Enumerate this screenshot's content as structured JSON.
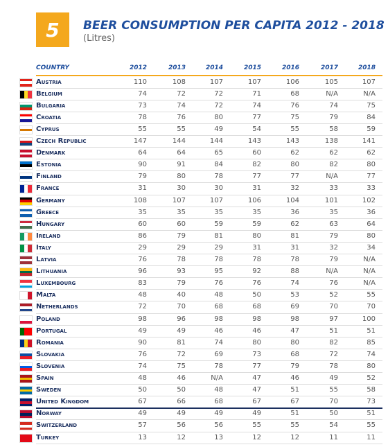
{
  "header": {
    "badge": "5",
    "title": "BEER CONSUMPTION PER CAPITA 2012 - 2018",
    "subtitle": "(Litres)"
  },
  "table": {
    "columns": [
      "COUNTRY",
      "2012",
      "2013",
      "2014",
      "2015",
      "2016",
      "2017",
      "2018"
    ],
    "rows": [
      [
        "Austria",
        110,
        108,
        107,
        107,
        106,
        105,
        107
      ],
      [
        "Belgium",
        74,
        72,
        72,
        71,
        68,
        "N/A",
        "N/A"
      ],
      [
        "Bulgaria",
        73,
        74,
        72,
        74,
        76,
        74,
        75
      ],
      [
        "Croatia",
        78,
        76,
        80,
        77,
        75,
        79,
        84
      ],
      [
        "Cyprus",
        55,
        55,
        49,
        54,
        55,
        58,
        59
      ],
      [
        "Czech Republic",
        147,
        144,
        144,
        143,
        143,
        138,
        141
      ],
      [
        "Denmark",
        64,
        64,
        65,
        60,
        62,
        62,
        62
      ],
      [
        "Estonia",
        90,
        91,
        84,
        82,
        80,
        82,
        80
      ],
      [
        "Finland",
        79,
        80,
        78,
        77,
        77,
        "N/A",
        77
      ],
      [
        "France",
        31,
        30,
        30,
        31,
        32,
        33,
        33
      ],
      [
        "Germany",
        108,
        107,
        107,
        106,
        104,
        101,
        102
      ],
      [
        "Greece",
        35,
        35,
        35,
        35,
        36,
        35,
        36
      ],
      [
        "Hungary",
        60,
        60,
        59,
        59,
        62,
        63,
        64
      ],
      [
        "Ireland",
        86,
        79,
        81,
        80,
        81,
        79,
        80
      ],
      [
        "Italy",
        29,
        29,
        29,
        31,
        31,
        32,
        34
      ],
      [
        "Latvia",
        76,
        78,
        78,
        78,
        78,
        79,
        "N/A"
      ],
      [
        "Lithuania",
        96,
        93,
        95,
        92,
        88,
        "N/A",
        "N/A"
      ],
      [
        "Luxembourg",
        83,
        79,
        76,
        76,
        74,
        76,
        "N/A"
      ],
      [
        "Malta",
        48,
        40,
        48,
        50,
        53,
        52,
        55
      ],
      [
        "Netherlands",
        72,
        70,
        68,
        68,
        69,
        70,
        70
      ],
      [
        "Poland",
        98,
        96,
        98,
        98,
        98,
        97,
        100
      ],
      [
        "Portugal",
        49,
        49,
        46,
        46,
        47,
        51,
        51
      ],
      [
        "Romania",
        90,
        81,
        74,
        80,
        80,
        82,
        85
      ],
      [
        "Slovakia",
        76,
        72,
        69,
        73,
        68,
        72,
        74
      ],
      [
        "Slovenia",
        74,
        75,
        78,
        77,
        79,
        78,
        80
      ],
      [
        "Spain",
        48,
        46,
        "N/A",
        47,
        46,
        49,
        52
      ],
      [
        "Sweden",
        50,
        50,
        48,
        47,
        51,
        55,
        58
      ],
      [
        "United Kingdom",
        67,
        66,
        68,
        67,
        67,
        70,
        73
      ],
      [
        "Norway",
        49,
        49,
        49,
        49,
        51,
        50,
        51
      ],
      [
        "Switzerland",
        57,
        56,
        56,
        55,
        55,
        54,
        55
      ],
      [
        "Turkey",
        13,
        12,
        13,
        12,
        12,
        11,
        11
      ]
    ]
  }
}
